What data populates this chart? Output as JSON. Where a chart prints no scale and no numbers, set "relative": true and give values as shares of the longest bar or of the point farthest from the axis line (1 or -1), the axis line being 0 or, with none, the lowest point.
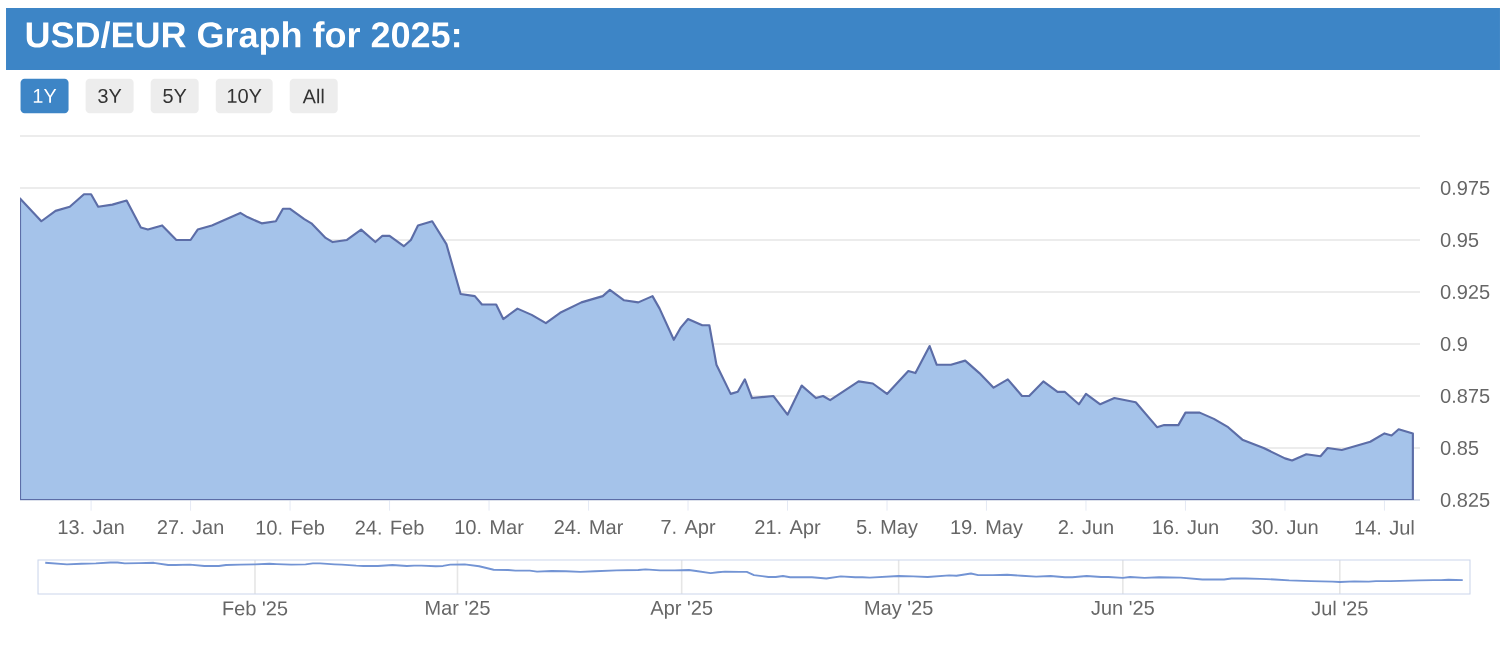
{
  "chart_data": [
    {
      "type": "area",
      "title": "USD/EUR Graph for 2025:",
      "annotations": [
        "1Y",
        "3Y",
        "5Y",
        "10Y",
        "All"
      ],
      "color": "#a5c3ea",
      "x": [
        "2025-01-03",
        "2025-01-06",
        "2025-01-08",
        "2025-01-10",
        "2025-01-12",
        "2025-01-13",
        "2025-01-14",
        "2025-01-16",
        "2025-01-18",
        "2025-01-20",
        "2025-01-21",
        "2025-01-23",
        "2025-01-25",
        "2025-01-27",
        "2025-01-28",
        "2025-01-30",
        "2025-02-01",
        "2025-02-03",
        "2025-02-04",
        "2025-02-06",
        "2025-02-08",
        "2025-02-09",
        "2025-02-10",
        "2025-02-12",
        "2025-02-13",
        "2025-02-15",
        "2025-02-16",
        "2025-02-18",
        "2025-02-20",
        "2025-02-22",
        "2025-02-23",
        "2025-02-24",
        "2025-02-26",
        "2025-02-27",
        "2025-02-28",
        "2025-03-02",
        "2025-03-04",
        "2025-03-06",
        "2025-03-08",
        "2025-03-09",
        "2025-03-11",
        "2025-03-12",
        "2025-03-14",
        "2025-03-16",
        "2025-03-18",
        "2025-03-20",
        "2025-03-23",
        "2025-03-26",
        "2025-03-27",
        "2025-03-29",
        "2025-03-31",
        "2025-04-02",
        "2025-04-03",
        "2025-04-05",
        "2025-04-06",
        "2025-04-07",
        "2025-04-09",
        "2025-04-10",
        "2025-04-11",
        "2025-04-13",
        "2025-04-14",
        "2025-04-15",
        "2025-04-16",
        "2025-04-19",
        "2025-04-21",
        "2025-04-23",
        "2025-04-25",
        "2025-04-26",
        "2025-04-27",
        "2025-05-01",
        "2025-05-03",
        "2025-05-05",
        "2025-05-08",
        "2025-05-09",
        "2025-05-11",
        "2025-05-12",
        "2025-05-14",
        "2025-05-16",
        "2025-05-18",
        "2025-05-20",
        "2025-05-22",
        "2025-05-24",
        "2025-05-25",
        "2025-05-27",
        "2025-05-29",
        "2025-05-30",
        "2025-06-01",
        "2025-06-02",
        "2025-06-04",
        "2025-06-06",
        "2025-06-09",
        "2025-06-12",
        "2025-06-13",
        "2025-06-15",
        "2025-06-16",
        "2025-06-18",
        "2025-06-20",
        "2025-06-22",
        "2025-06-24",
        "2025-06-27",
        "2025-06-30",
        "2025-07-01",
        "2025-07-03",
        "2025-07-05",
        "2025-07-06",
        "2025-07-08",
        "2025-07-12",
        "2025-07-14",
        "2025-07-15",
        "2025-07-16",
        "2025-07-18"
      ],
      "values": [
        0.97,
        0.959,
        0.964,
        0.966,
        0.972,
        0.972,
        0.966,
        0.967,
        0.969,
        0.956,
        0.955,
        0.957,
        0.95,
        0.95,
        0.955,
        0.957,
        0.96,
        0.963,
        0.961,
        0.958,
        0.959,
        0.965,
        0.965,
        0.96,
        0.958,
        0.951,
        0.949,
        0.95,
        0.955,
        0.949,
        0.952,
        0.952,
        0.947,
        0.95,
        0.957,
        0.959,
        0.948,
        0.924,
        0.923,
        0.919,
        0.919,
        0.912,
        0.917,
        0.914,
        0.91,
        0.915,
        0.92,
        0.923,
        0.926,
        0.921,
        0.92,
        0.923,
        0.917,
        0.902,
        0.908,
        0.912,
        0.909,
        0.909,
        0.89,
        0.876,
        0.877,
        0.883,
        0.874,
        0.875,
        0.866,
        0.88,
        0.874,
        0.875,
        0.873,
        0.882,
        0.881,
        0.876,
        0.887,
        0.886,
        0.899,
        0.89,
        0.89,
        0.892,
        0.886,
        0.879,
        0.883,
        0.875,
        0.875,
        0.882,
        0.877,
        0.877,
        0.871,
        0.876,
        0.871,
        0.874,
        0.872,
        0.86,
        0.861,
        0.861,
        0.867,
        0.867,
        0.864,
        0.86,
        0.854,
        0.85,
        0.845,
        0.844,
        0.847,
        0.846,
        0.85,
        0.849,
        0.853,
        0.857,
        0.856,
        0.859,
        0.857
      ],
      "xlim": [
        "2025-01-03",
        "2025-07-19"
      ],
      "xticks": [
        {
          "value": "2025-01-13",
          "label": "13. Jan"
        },
        {
          "value": "2025-01-27",
          "label": "27. Jan"
        },
        {
          "value": "2025-02-10",
          "label": "10. Feb"
        },
        {
          "value": "2025-02-24",
          "label": "24. Feb"
        },
        {
          "value": "2025-03-10",
          "label": "10. Mar"
        },
        {
          "value": "2025-03-24",
          "label": "24. Mar"
        },
        {
          "value": "2025-04-07",
          "label": "7. Apr"
        },
        {
          "value": "2025-04-21",
          "label": "21. Apr"
        },
        {
          "value": "2025-05-05",
          "label": "5. May"
        },
        {
          "value": "2025-05-19",
          "label": "19. May"
        },
        {
          "value": "2025-06-02",
          "label": "2. Jun"
        },
        {
          "value": "2025-06-16",
          "label": "16. Jun"
        },
        {
          "value": "2025-06-30",
          "label": "30. Jun"
        },
        {
          "value": "2025-07-14",
          "label": "14. Jul"
        }
      ],
      "ylim": [
        0.825,
        1.0
      ],
      "yticks": [
        0.825,
        0.85,
        0.875,
        0.9,
        0.925,
        0.95,
        0.975,
        {
          "value": 1.0,
          "label": null
        }
      ],
      "grid": "y"
    },
    {
      "type": "line",
      "color": "#7394d4",
      "relative": true,
      "x": [
        "2025-01-03",
        "2025-01-06",
        "2025-01-08",
        "2025-01-10",
        "2025-01-12",
        "2025-01-13",
        "2025-01-14",
        "2025-01-16",
        "2025-01-18",
        "2025-01-20",
        "2025-01-21",
        "2025-01-23",
        "2025-01-25",
        "2025-01-27",
        "2025-01-28",
        "2025-01-30",
        "2025-02-01",
        "2025-02-03",
        "2025-02-04",
        "2025-02-06",
        "2025-02-08",
        "2025-02-09",
        "2025-02-10",
        "2025-02-12",
        "2025-02-13",
        "2025-02-15",
        "2025-02-16",
        "2025-02-18",
        "2025-02-20",
        "2025-02-22",
        "2025-02-23",
        "2025-02-24",
        "2025-02-26",
        "2025-02-27",
        "2025-02-28",
        "2025-03-02",
        "2025-03-04",
        "2025-03-06",
        "2025-03-08",
        "2025-03-09",
        "2025-03-11",
        "2025-03-12",
        "2025-03-14",
        "2025-03-16",
        "2025-03-18",
        "2025-03-20",
        "2025-03-23",
        "2025-03-26",
        "2025-03-27",
        "2025-03-29",
        "2025-03-31",
        "2025-04-02",
        "2025-04-03",
        "2025-04-05",
        "2025-04-06",
        "2025-04-07",
        "2025-04-09",
        "2025-04-10",
        "2025-04-11",
        "2025-04-13",
        "2025-04-14",
        "2025-04-15",
        "2025-04-16",
        "2025-04-19",
        "2025-04-21",
        "2025-04-23",
        "2025-04-25",
        "2025-04-26",
        "2025-04-27",
        "2025-05-01",
        "2025-05-03",
        "2025-05-05",
        "2025-05-08",
        "2025-05-09",
        "2025-05-11",
        "2025-05-12",
        "2025-05-14",
        "2025-05-16",
        "2025-05-18",
        "2025-05-20",
        "2025-05-22",
        "2025-05-24",
        "2025-05-25",
        "2025-05-27",
        "2025-05-29",
        "2025-05-30",
        "2025-06-01",
        "2025-06-02",
        "2025-06-04",
        "2025-06-06",
        "2025-06-09",
        "2025-06-12",
        "2025-06-13",
        "2025-06-15",
        "2025-06-16",
        "2025-06-18",
        "2025-06-20",
        "2025-06-22",
        "2025-06-24",
        "2025-06-27",
        "2025-06-30",
        "2025-07-01",
        "2025-07-03",
        "2025-07-05",
        "2025-07-06",
        "2025-07-08",
        "2025-07-12",
        "2025-07-14",
        "2025-07-15",
        "2025-07-16",
        "2025-07-18"
      ],
      "values": [
        0.99,
        0.94,
        0.96,
        0.97,
        1,
        1,
        0.97,
        0.98,
        0.99,
        0.92,
        0.92,
        0.93,
        0.89,
        0.89,
        0.92,
        0.93,
        0.94,
        0.96,
        0.95,
        0.93,
        0.94,
        0.97,
        0.97,
        0.94,
        0.93,
        0.9,
        0.89,
        0.89,
        0.92,
        0.89,
        0.9,
        0.9,
        0.88,
        0.89,
        0.93,
        0.94,
        0.88,
        0.77,
        0.76,
        0.74,
        0.74,
        0.71,
        0.73,
        0.72,
        0.7,
        0.72,
        0.75,
        0.76,
        0.78,
        0.75,
        0.75,
        0.76,
        0.73,
        0.66,
        0.69,
        0.71,
        0.7,
        0.7,
        0.6,
        0.54,
        0.54,
        0.57,
        0.53,
        0.53,
        0.49,
        0.56,
        0.53,
        0.53,
        0.52,
        0.57,
        0.56,
        0.54,
        0.59,
        0.58,
        0.65,
        0.6,
        0.6,
        0.61,
        0.58,
        0.55,
        0.57,
        0.53,
        0.53,
        0.57,
        0.54,
        0.54,
        0.51,
        0.54,
        0.51,
        0.53,
        0.52,
        0.46,
        0.46,
        0.46,
        0.49,
        0.49,
        0.48,
        0.46,
        0.43,
        0.41,
        0.39,
        0.38,
        0.4,
        0.39,
        0.41,
        0.41,
        0.43,
        0.44,
        0.44,
        0.45,
        0.44
      ],
      "xlim": [
        "2025-01-02",
        "2025-07-19"
      ],
      "xticks": [
        {
          "value": "2025-02-01",
          "label": "Feb '25"
        },
        {
          "value": "2025-03-01",
          "label": "Mar '25"
        },
        {
          "value": "2025-04-01",
          "label": "Apr '25"
        },
        {
          "value": "2025-05-01",
          "label": "May '25"
        },
        {
          "value": "2025-06-01",
          "label": "Jun '25"
        },
        {
          "value": "2025-07-01",
          "label": "Jul '25"
        }
      ],
      "tick_labels": "x",
      "grid": "x"
    }
  ]
}
